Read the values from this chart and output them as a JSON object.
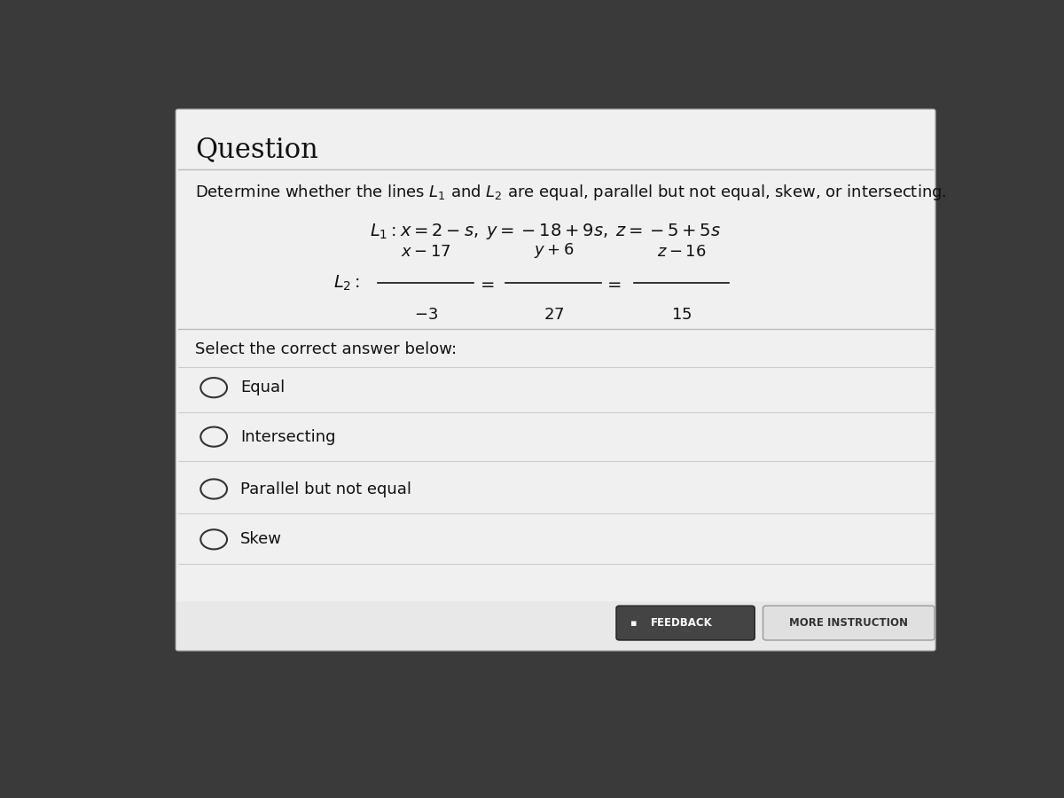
{
  "title": "Question",
  "question_text": "Determine whether the lines $L_1$ and $L_2$ are equal, parallel but not equal, skew, or intersecting.",
  "options": [
    "Equal",
    "Intersecting",
    "Parallel but not equal",
    "Skew"
  ],
  "feedback_btn": "FEEDBACK",
  "instruction_btn": "MORE INSTRUCTION",
  "outer_bg": "#3a3a3a",
  "card_color": "#f0f0f0",
  "divider_color": "#bbbbbb",
  "option_divider_color": "#cccccc",
  "text_color": "#111111",
  "feedback_bg": "#444444",
  "feedback_text": "#ffffff",
  "instruction_bg": "#e0e0e0",
  "instruction_text": "#333333"
}
